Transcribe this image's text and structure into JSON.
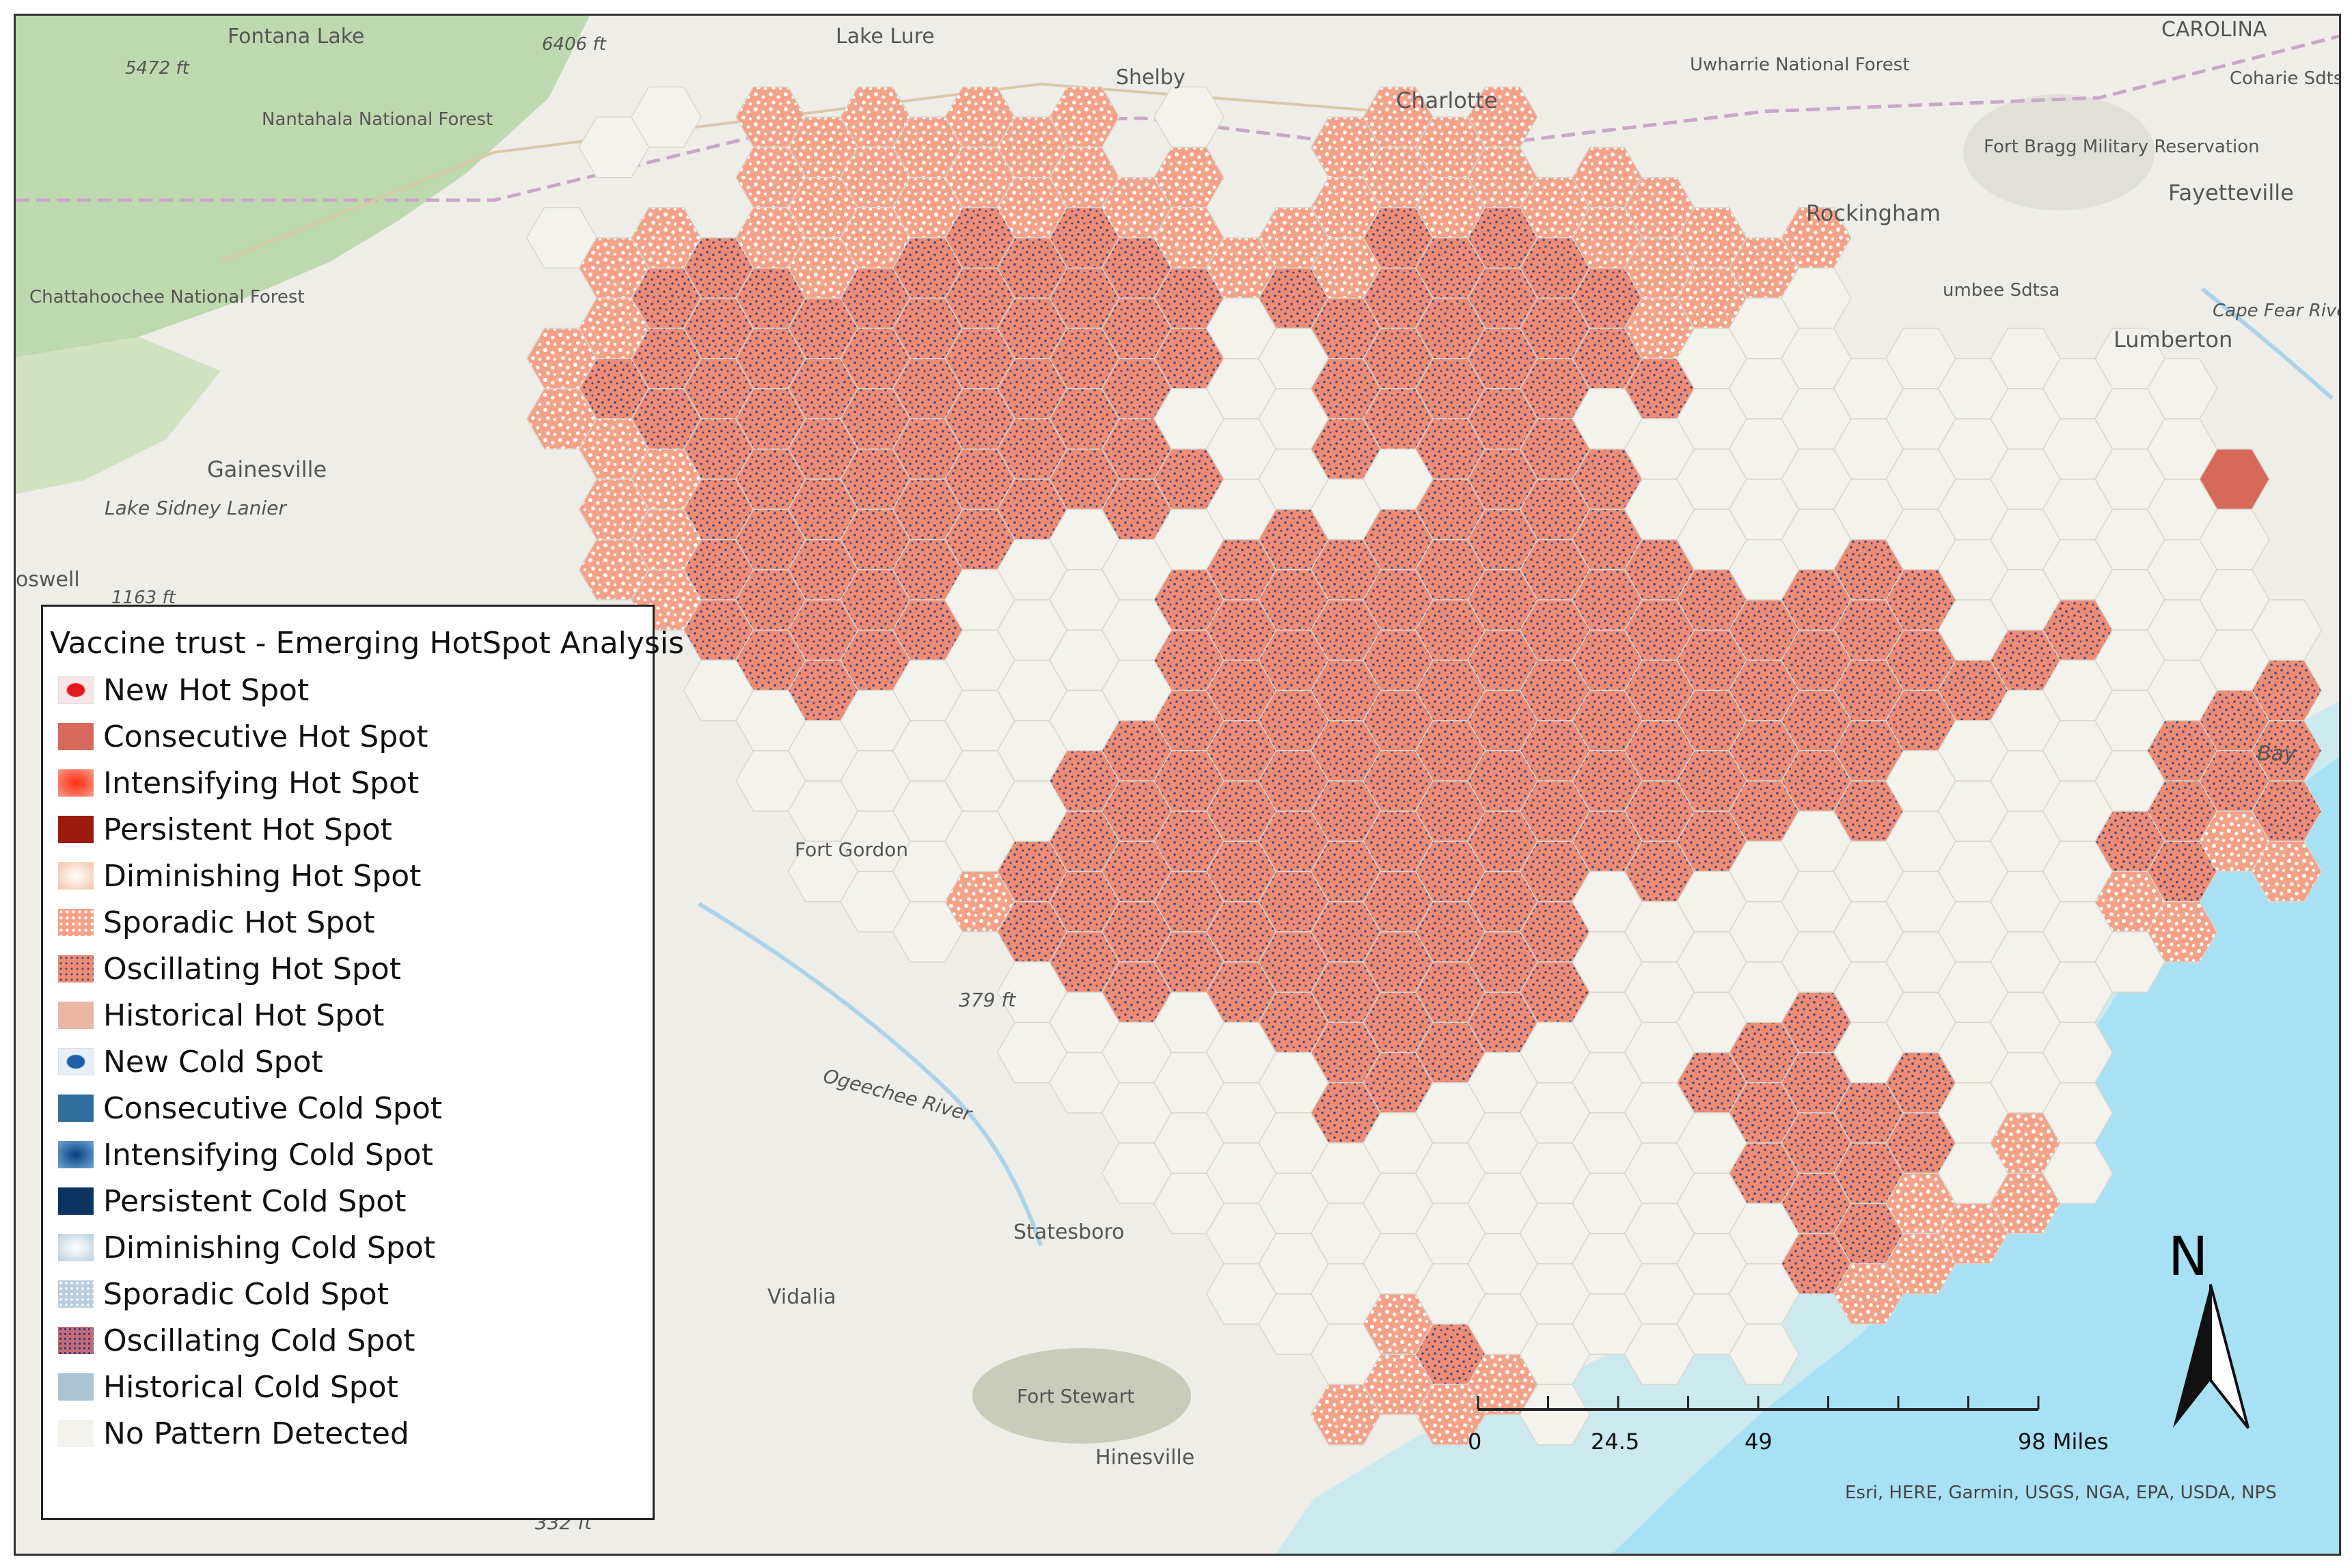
{
  "legend": {
    "title": "Vaccine trust - Emerging HotSpot Analysis",
    "items": [
      {
        "label": "New Hot Spot",
        "color": "#e31a1c",
        "pattern": "center-dot-red"
      },
      {
        "label": "Consecutive Hot Spot",
        "color": "#d6695a",
        "pattern": "solid"
      },
      {
        "label": "Intensifying Hot Spot",
        "color": "#f04b2d",
        "pattern": "radial-red"
      },
      {
        "label": "Persistent Hot Spot",
        "color": "#9b1c0e",
        "pattern": "solid"
      },
      {
        "label": "Diminishing Hot Spot",
        "color": "#f8d3bb",
        "pattern": "radial-light"
      },
      {
        "label": "Sporadic Hot Spot",
        "color": "#f4a287",
        "pattern": "white-dots"
      },
      {
        "label": "Oscillating Hot Spot",
        "color": "#ef8c73",
        "pattern": "blue-dots"
      },
      {
        "label": "Historical Hot Spot",
        "color": "#e9b7a3",
        "pattern": "solid"
      },
      {
        "label": "New Cold Spot",
        "color": "#1f5fa5",
        "pattern": "center-dot-blue"
      },
      {
        "label": "Consecutive Cold Spot",
        "color": "#2f6e9d",
        "pattern": "solid"
      },
      {
        "label": "Intensifying Cold Spot",
        "color": "#2a7ab8",
        "pattern": "radial-blue"
      },
      {
        "label": "Persistent Cold Spot",
        "color": "#0b3560",
        "pattern": "solid"
      },
      {
        "label": "Diminishing Cold Spot",
        "color": "#c7d8e4",
        "pattern": "radial-pale-blue"
      },
      {
        "label": "Sporadic Cold Spot",
        "color": "#b8cde0",
        "pattern": "white-dots-blue"
      },
      {
        "label": "Oscillating Cold Spot",
        "color": "#c46b78",
        "pattern": "blue-dots-pink"
      },
      {
        "label": "Historical Cold Spot",
        "color": "#a9c3d3",
        "pattern": "solid"
      },
      {
        "label": "No Pattern Detected",
        "color": "#f3f2ec",
        "pattern": "solid"
      }
    ]
  },
  "places": [
    {
      "name": "Fontana Lake"
    },
    {
      "name": "5472 ft"
    },
    {
      "name": "6406 ft"
    },
    {
      "name": "Lake Lure"
    },
    {
      "name": "Shelby"
    },
    {
      "name": "Charlotte"
    },
    {
      "name": "Uwharrie National Forest"
    },
    {
      "name": "CAROLINA"
    },
    {
      "name": "Coharie Sdtsa"
    },
    {
      "name": "Nantahala National Forest"
    },
    {
      "name": "Fort Bragg Military Reservation"
    },
    {
      "name": "Fayetteville"
    },
    {
      "name": "Rockingham"
    },
    {
      "name": "Chattahoochee National Forest"
    },
    {
      "name": "umbee Sdtsa"
    },
    {
      "name": "Lumberton"
    },
    {
      "name": "Cape Fear River"
    },
    {
      "name": "Gainesville"
    },
    {
      "name": "Lake Sidney Lanier"
    },
    {
      "name": "oswell"
    },
    {
      "name": "1163 ft"
    },
    {
      "name": "Fort Gordon"
    },
    {
      "name": "379 ft"
    },
    {
      "name": "Ogeechee River"
    },
    {
      "name": "Statesboro"
    },
    {
      "name": "Vidalia"
    },
    {
      "name": "Fort Stewart"
    },
    {
      "name": "Hinesville"
    },
    {
      "name": "332 ft"
    },
    {
      "name": "Bay"
    }
  ],
  "scale_bar": {
    "labels": [
      "0",
      "24.5",
      "49",
      "98 Miles"
    ],
    "values": [
      0,
      24.5,
      49,
      98
    ],
    "unit": "Miles"
  },
  "north_arrow": {
    "label": "N"
  },
  "attribution": "Esri, HERE, Garmin, USGS, NGA, EPA, USDA, NPS",
  "hex_map": {
    "rows": [
      "...........................................",
      ".......NN.SSSSSSS.N..SSSS...........................",
      "..........SSSSSSSSS..SSSSSSS.................",
      "......NSSOSSSOOOOOSSSSOOOOSSSSS...................",
      ".......SOOOOOOOOOOONOOOOOOOSSNN............",
      "......SOOOOOOOOOOOONNOOOOOOONNNNNNNNNN........",
      "......SSOOOOOOOOOONNNOOOOONNNNNNNNNNNN.........",
      ".......SSOOOOOOOOOONNNNOOOONNNNNNNNNNNC...",
      ".......SSOOOOOONNNNOOOOOOOOONNNONNNNNNN...",
      "........SOOOOONNNNOOOOOOOOOOOOOOONNONNNNN....",
      ".........NOOONNNNNOOOOOOOOOOOOOOOOONNNNOOSSS..",
      "..........NNNNNNNOOOOOOOOOOOOOOOONNNNOOOOS...",
      "..........NNNNNNOOOOOOOOOOOOOOOONNNNNOOOSS..",
      "...........NNNNOOOOOOOOOOOOOONNNNNNNOOSS...",
      "............NNSOOOOOOOOOOONNNNNNNNNNSS....",
      "...............NOOOOOOOOOONNNNNNNNNNN.....",
      "...............NNNNNOOOOONNNNOONNNNN.....",
      "................NNNNNOONNNNNOOOOONNN......",
      ".................NNNNNNNNNNNNOOOONSN......",
      "..................NNNNNNNNNNNNOOSSS........",
      "...................NNNNNNNNNNNOSS..........",
      "....................NNSONNNNNN.............",
      ".....................SSSSN..................."
    ]
  }
}
